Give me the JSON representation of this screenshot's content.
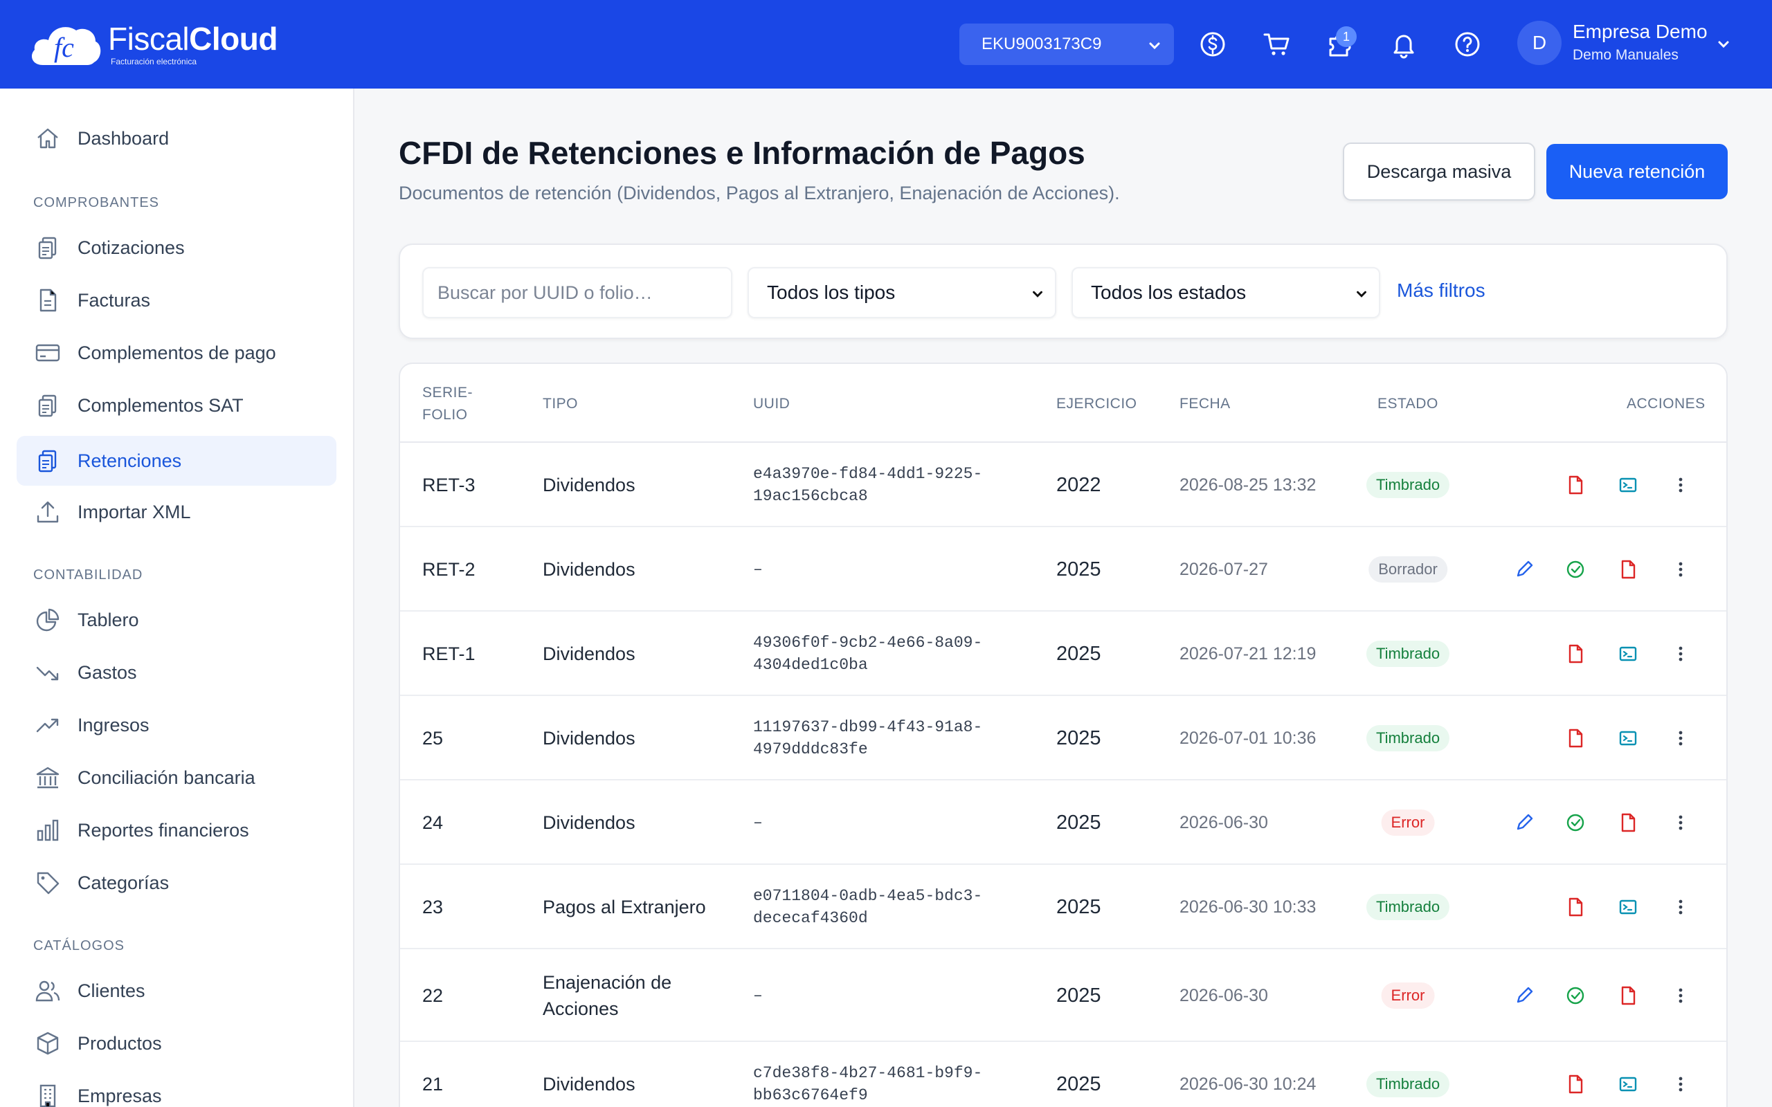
{
  "brand": {
    "name_light": "Fiscal",
    "name_bold": "Cloud",
    "tagline": "Facturación electrónica"
  },
  "topbar": {
    "rfc": "EKU9003173C9",
    "icons": [
      "dollar-icon",
      "cart-icon",
      "puzzle-icon",
      "bell-icon",
      "help-icon"
    ],
    "notification_count": "1",
    "avatar_initial": "D",
    "user_name": "Empresa Demo",
    "user_sub": "Demo Manuales"
  },
  "sidebar": {
    "dashboard": "Dashboard",
    "sections": {
      "comprobantes": "COMPROBANTES",
      "contabilidad": "CONTABILIDAD",
      "catalogos": "CATÁLOGOS"
    },
    "items": {
      "cotizaciones": "Cotizaciones",
      "facturas": "Facturas",
      "complementos_pago": "Complementos de pago",
      "complementos_sat": "Complementos SAT",
      "retenciones": "Retenciones",
      "importar_xml": "Importar XML",
      "tablero": "Tablero",
      "gastos": "Gastos",
      "ingresos": "Ingresos",
      "conciliacion": "Conciliación bancaria",
      "reportes": "Reportes financieros",
      "categorias": "Categorías",
      "clientes": "Clientes",
      "productos": "Productos",
      "empresas": "Empresas"
    }
  },
  "header": {
    "title": "CFDI de Retenciones e Información de Pagos",
    "subtitle": "Documentos de retención (Dividendos, Pagos al Extranjero, Enajenación de Acciones).",
    "download_label": "Descarga masiva",
    "new_label": "Nueva retención"
  },
  "filters": {
    "search_placeholder": "Buscar por UUID o folio…",
    "type_value": "Todos los tipos",
    "status_value": "Todos los estados",
    "more": "Más filtros"
  },
  "table": {
    "headers": {
      "serie_1": "SERIE-",
      "serie_2": "FOLIO",
      "tipo": "TIPO",
      "uuid": "UUID",
      "ejercicio": "EJERCICIO",
      "fecha": "FECHA",
      "estado": "ESTADO",
      "acciones": "ACCIONES"
    },
    "rows": [
      {
        "folio": "RET-3",
        "tipo": "Dividendos",
        "uuid": "e4a3970e-fd84-4dd1-9225-19ac156cbca8",
        "ejercicio": "2022",
        "fecha": "2026-08-25 13:32",
        "estado": "Timbrado"
      },
      {
        "folio": "RET-2",
        "tipo": "Dividendos",
        "uuid": "–",
        "ejercicio": "2025",
        "fecha": "2026-07-27",
        "estado": "Borrador"
      },
      {
        "folio": "RET-1",
        "tipo": "Dividendos",
        "uuid": "49306f0f-9cb2-4e66-8a09-4304ded1c0ba",
        "ejercicio": "2025",
        "fecha": "2026-07-21 12:19",
        "estado": "Timbrado"
      },
      {
        "folio": "25",
        "tipo": "Dividendos",
        "uuid": "11197637-db99-4f43-91a8-4979dddc83fe",
        "ejercicio": "2025",
        "fecha": "2026-07-01 10:36",
        "estado": "Timbrado"
      },
      {
        "folio": "24",
        "tipo": "Dividendos",
        "uuid": "–",
        "ejercicio": "2025",
        "fecha": "2026-06-30",
        "estado": "Error"
      },
      {
        "folio": "23",
        "tipo": "Pagos al Extranjero",
        "uuid": "e0711804-0adb-4ea5-bdc3-dececaf4360d",
        "ejercicio": "2025",
        "fecha": "2026-06-30 10:33",
        "estado": "Timbrado"
      },
      {
        "folio": "22",
        "tipo": "Enajenación de Acciones",
        "uuid": "–",
        "ejercicio": "2025",
        "fecha": "2026-06-30",
        "estado": "Error"
      },
      {
        "folio": "21",
        "tipo": "Dividendos",
        "uuid": "c7de38f8-4b27-4681-b9f9-bb63c6764ef9",
        "ejercicio": "2025",
        "fecha": "2026-06-30 10:24",
        "estado": "Timbrado"
      }
    ]
  },
  "colors": {
    "primary": "#1a47e6",
    "accent": "#1a5ff5",
    "success": "#15803d",
    "danger": "#dc2626"
  }
}
